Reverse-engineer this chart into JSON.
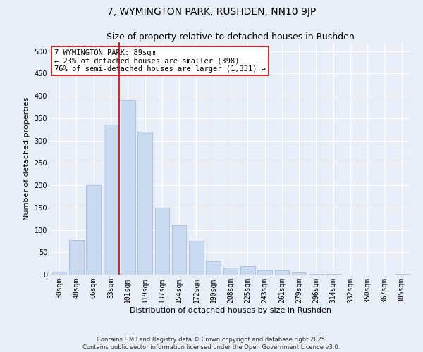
{
  "title": "7, WYMINGTON PARK, RUSHDEN, NN10 9JP",
  "subtitle": "Size of property relative to detached houses in Rushden",
  "xlabel": "Distribution of detached houses by size in Rushden",
  "ylabel": "Number of detached properties",
  "bar_color": "#c9d9f0",
  "bar_edge_color": "#a0b8d8",
  "bg_color": "#e8eef8",
  "grid_color": "#ffffff",
  "categories": [
    "30sqm",
    "48sqm",
    "66sqm",
    "83sqm",
    "101sqm",
    "119sqm",
    "137sqm",
    "154sqm",
    "172sqm",
    "190sqm",
    "208sqm",
    "225sqm",
    "243sqm",
    "261sqm",
    "279sqm",
    "296sqm",
    "314sqm",
    "332sqm",
    "350sqm",
    "367sqm",
    "385sqm"
  ],
  "values": [
    7,
    78,
    200,
    335,
    390,
    320,
    150,
    110,
    75,
    30,
    16,
    19,
    10,
    10,
    5,
    2,
    1,
    0,
    0,
    0,
    1
  ],
  "ylim": [
    0,
    520
  ],
  "yticks": [
    0,
    50,
    100,
    150,
    200,
    250,
    300,
    350,
    400,
    450,
    500
  ],
  "vline_x": 3.5,
  "vline_color": "#cc0000",
  "annotation_text": "7 WYMINGTON PARK: 89sqm\n← 23% of detached houses are smaller (398)\n76% of semi-detached houses are larger (1,331) →",
  "annotation_box_color": "#ffffff",
  "annotation_box_edgecolor": "#cc0000",
  "footnote": "Contains HM Land Registry data © Crown copyright and database right 2025.\nContains public sector information licensed under the Open Government Licence v3.0.",
  "title_fontsize": 10,
  "subtitle_fontsize": 9,
  "axis_label_fontsize": 8,
  "tick_fontsize": 7,
  "annotation_fontsize": 7.5,
  "footnote_fontsize": 6
}
